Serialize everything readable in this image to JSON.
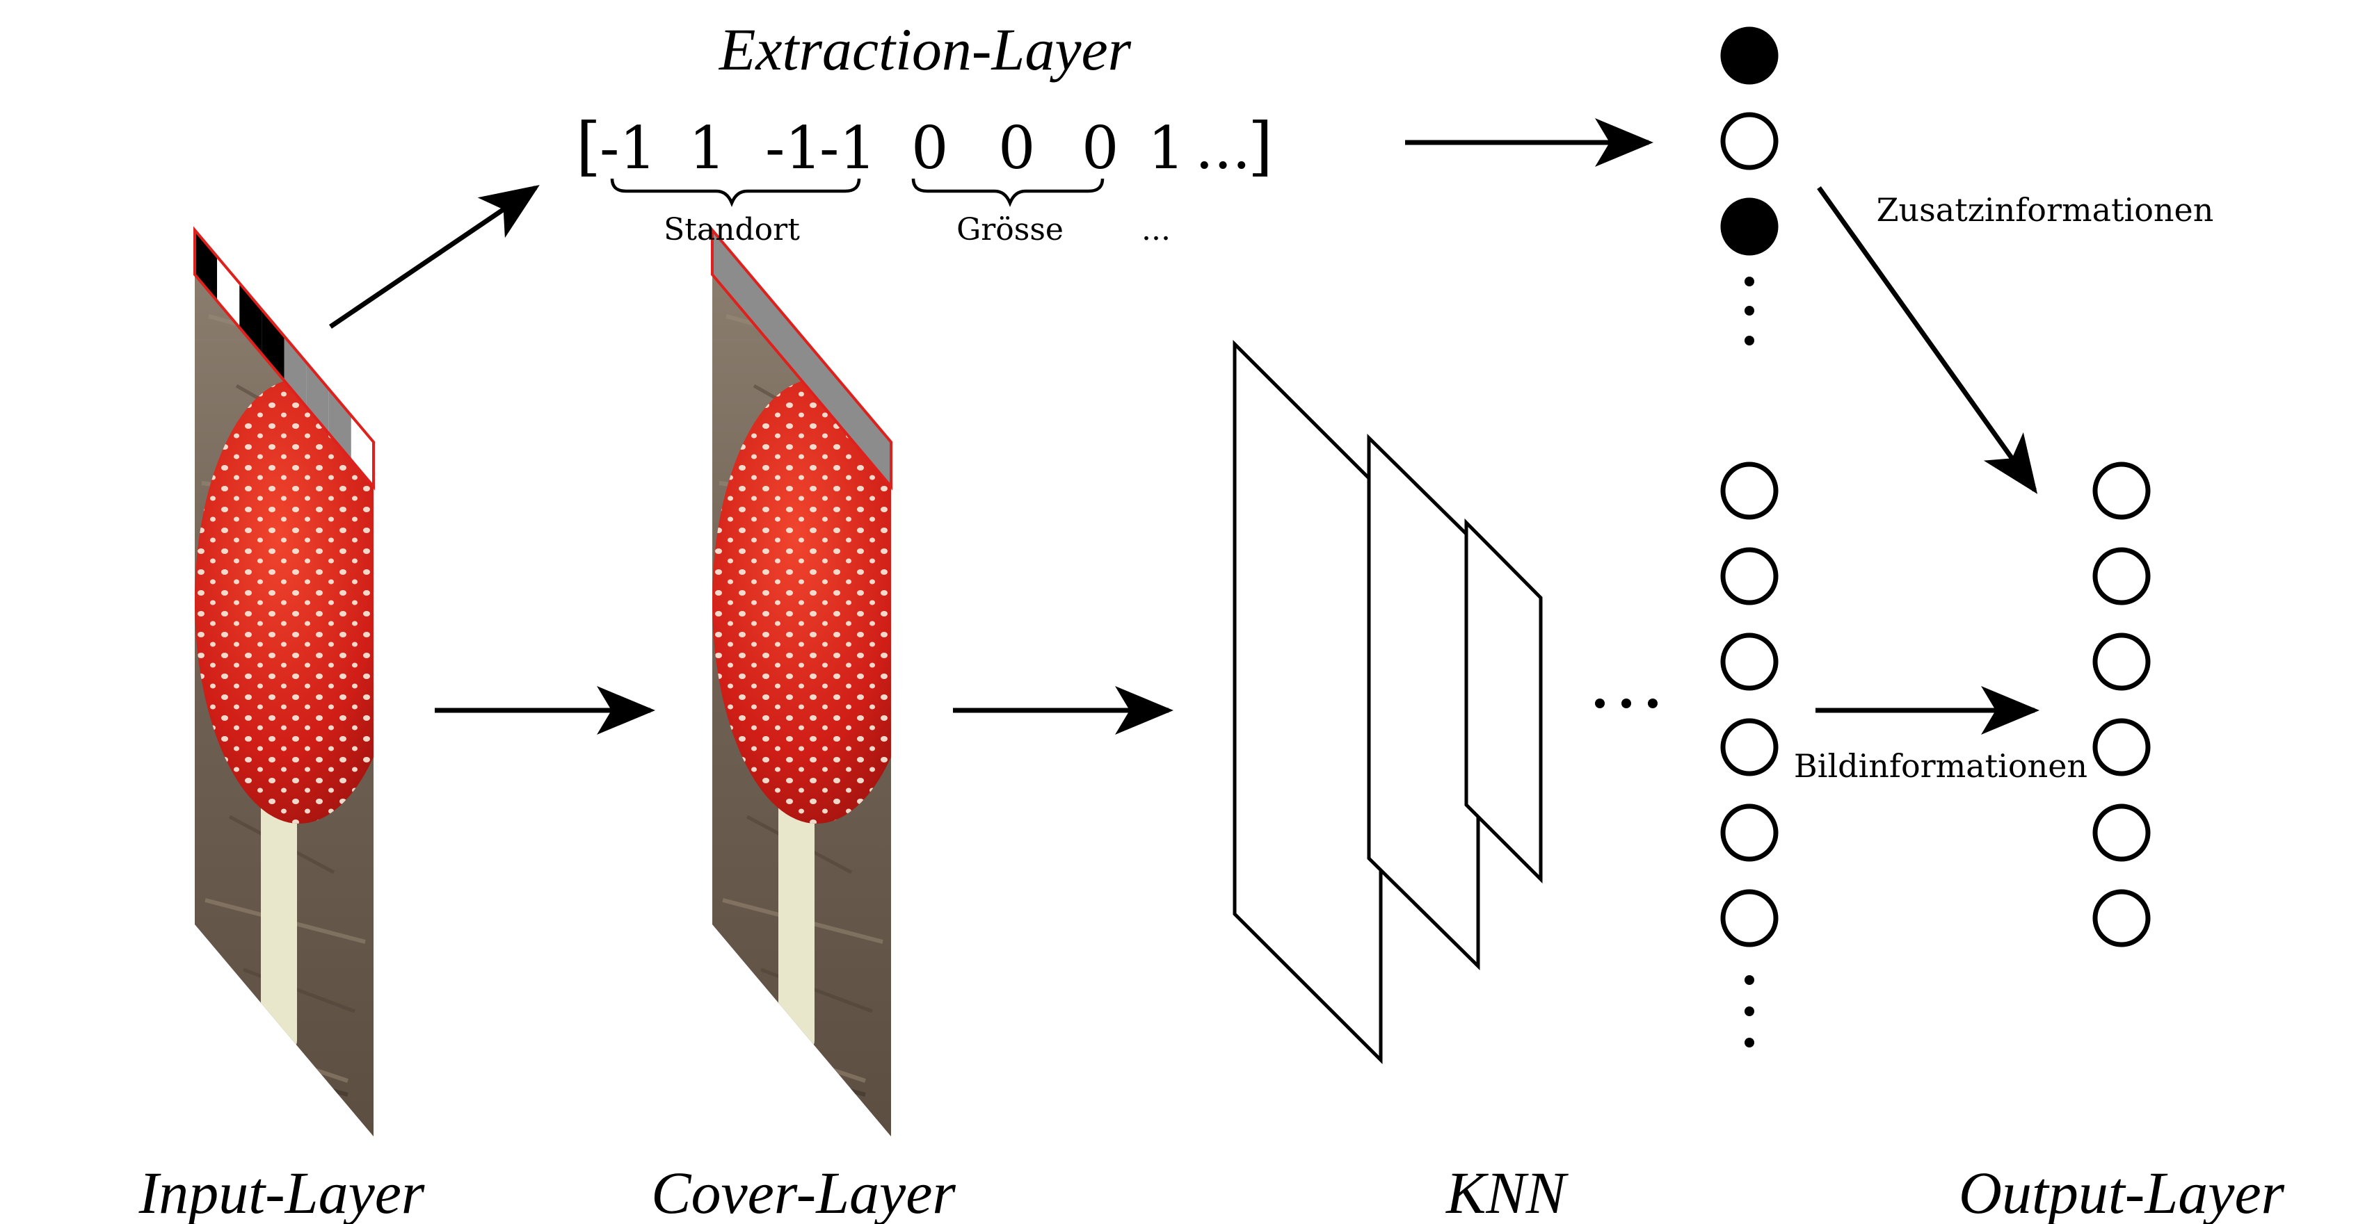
{
  "labels": {
    "extraction_layer": "Extraction-Layer",
    "input_layer": "Input-Layer",
    "cover_layer": "Cover-Layer",
    "knn": "KNN",
    "output_layer": "Output-Layer",
    "zusatzinformationen": "Zusatzinformationen",
    "bildinformationen": "Bildinformationen"
  },
  "vector": {
    "open_bracket": "[",
    "close_bracket": "]",
    "values": [
      "-1",
      "1",
      "-1",
      "-1",
      "0",
      "0",
      "0",
      "1",
      "..."
    ],
    "groups": [
      "Standort",
      "Grösse",
      "..."
    ]
  },
  "knn_dots": "...",
  "extraction_neurons": {
    "states": [
      "filled",
      "empty",
      "filled"
    ],
    "continuation": "vertical-dots"
  },
  "image_neuron_count": 6,
  "output_neuron_count": 6,
  "input_strip_pattern": [
    "black",
    "white",
    "black",
    "black",
    "gray",
    "gray",
    "gray",
    "white"
  ],
  "colors": {
    "stroke": "#000000",
    "strip_border": "#e0201c",
    "strip_gray": "#8c8c8c",
    "mushroom_cap": "#d8231f",
    "mushroom_stem": "#e8e6c8",
    "forest_floor": "#6f6254"
  }
}
